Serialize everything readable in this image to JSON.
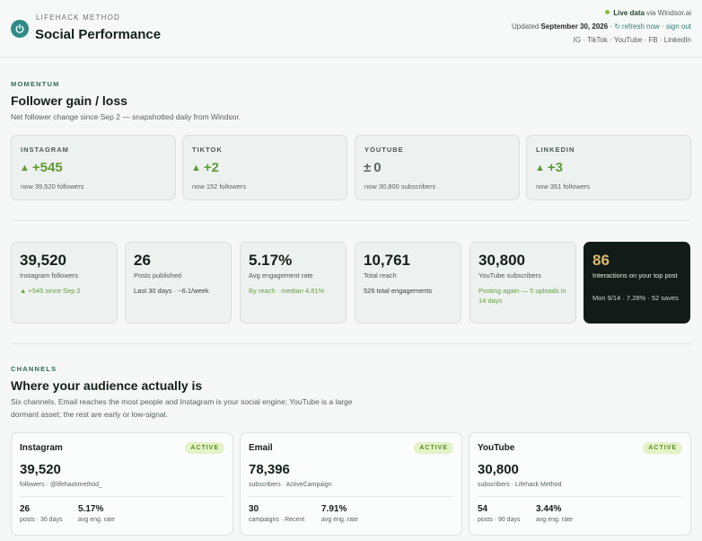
{
  "header": {
    "kicker": "LIFEHACK METHOD",
    "title": "Social Performance",
    "live_label": "Live data",
    "live_via": "via Windsor.ai",
    "updated_prefix": "Updated",
    "updated_date": "September 30, 2026",
    "separator": "·",
    "refresh_label": "refresh now",
    "signout_label": "sign out",
    "platforms": "IG · TikTok · YouTube · FB · LinkedIn"
  },
  "momentum": {
    "kicker": "MOMENTUM",
    "title": "Follower gain / loss",
    "subtitle": "Net follower change since Sep 2 — snapshotted daily from Windsor.",
    "cards": [
      {
        "platform": "INSTAGRAM",
        "symbol": "▲",
        "value": "+545",
        "note": "now 39,520 followers"
      },
      {
        "platform": "TIKTOK",
        "symbol": "▲",
        "value": "+2",
        "note": "now 152 followers"
      },
      {
        "platform": "YOUTUBE",
        "symbol": "±",
        "value": "0",
        "note": "now 30,800 subscribers"
      },
      {
        "platform": "LINKEDIN",
        "symbol": "▲",
        "value": "+3",
        "note": "now 351 followers"
      }
    ]
  },
  "kpis": [
    {
      "value": "39,520",
      "label": "Instagram followers",
      "note": "▲ +545 since Sep 2"
    },
    {
      "value": "26",
      "label": "Posts published",
      "note": "Last 30 days · ~6.1/week"
    },
    {
      "value": "5.17%",
      "label": "Avg engagement rate",
      "note": "By reach · median 4.81%"
    },
    {
      "value": "10,761",
      "label": "Total reach",
      "note": "526 total engagements"
    },
    {
      "value": "30,800",
      "label": "YouTube subscribers",
      "note": "Posting again — 5 uploads in 14 days"
    },
    {
      "value": "86",
      "label": "Interactions on your top post",
      "note": "Mon 9/14 · 7.28% · 52 saves"
    }
  ],
  "channels": {
    "kicker": "CHANNELS",
    "title": "Where your audience actually is",
    "subtitle": "Six channels. Email reaches the most people and Instagram is your social engine; YouTube is a large dormant asset; the rest are early or low-signal.",
    "cards": [
      {
        "name": "Instagram",
        "badge": "ACTIVE",
        "value": "39,520",
        "sub": "followers · @lifehackmethod_",
        "stat1_val": "26",
        "stat1_lab": "posts · 30 days",
        "stat2_val": "5.17%",
        "stat2_lab": "avg eng. rate"
      },
      {
        "name": "Email",
        "badge": "ACTIVE",
        "value": "78,396",
        "sub": "subscribers · ActiveCampaign",
        "stat1_val": "30",
        "stat1_lab": "campaigns · Recent",
        "stat2_val": "7.91%",
        "stat2_lab": "avg eng. rate"
      },
      {
        "name": "YouTube",
        "badge": "ACTIVE",
        "value": "30,800",
        "sub": "subscribers · Lifehack Method",
        "stat1_val": "54",
        "stat1_lab": "posts · 90 days",
        "stat2_val": "3.44%",
        "stat2_lab": "avg eng. rate"
      }
    ]
  },
  "colors": {
    "accent": "#2f8b87",
    "positive": "#5f9b35",
    "dark_card": "#121b17",
    "highlight": "#d8b86a",
    "badge_bg": "#e4f2c8"
  }
}
